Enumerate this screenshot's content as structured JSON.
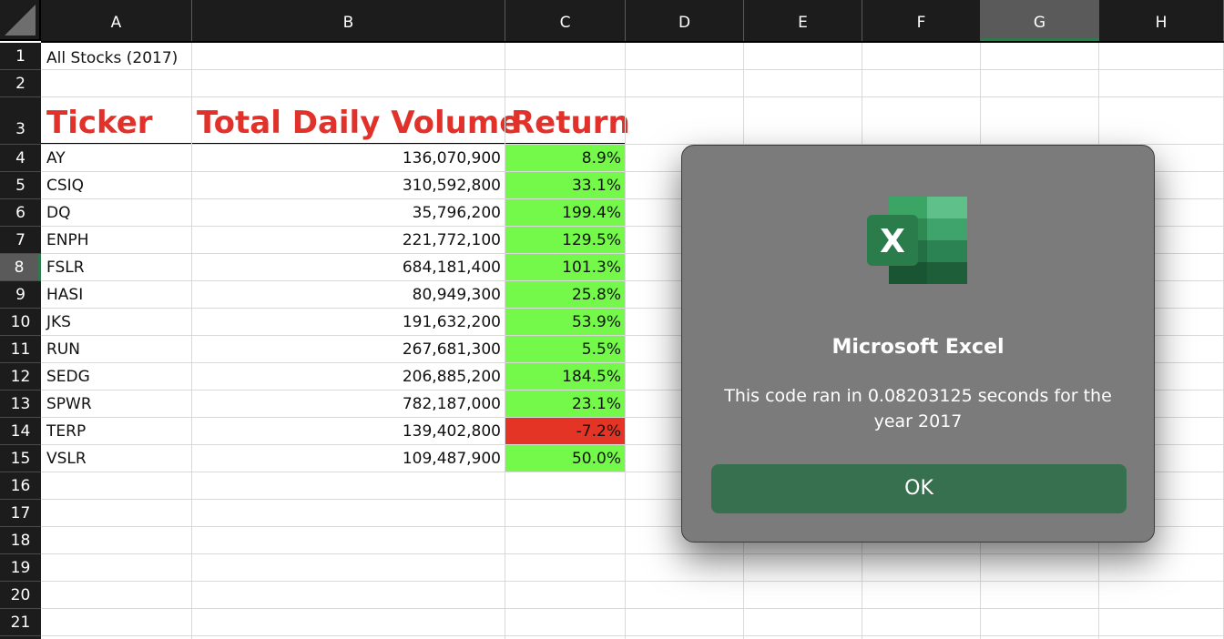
{
  "columns": [
    "A",
    "B",
    "C",
    "D",
    "E",
    "F",
    "G",
    "H"
  ],
  "rows": [
    "1",
    "2",
    "3",
    "4",
    "5",
    "6",
    "7",
    "8",
    "9",
    "10",
    "11",
    "12",
    "13",
    "14",
    "15",
    "16",
    "17",
    "18",
    "19",
    "20",
    "21"
  ],
  "sheet_title": "All Stocks (2017)",
  "headers": {
    "ticker": "Ticker",
    "volume": "Total Daily Volume",
    "return": "Return"
  },
  "stocks": [
    {
      "ticker": "AY",
      "volume": "136,070,900",
      "return": "8.9%",
      "status": "positive"
    },
    {
      "ticker": "CSIQ",
      "volume": "310,592,800",
      "return": "33.1%",
      "status": "positive"
    },
    {
      "ticker": "DQ",
      "volume": "35,796,200",
      "return": "199.4%",
      "status": "positive"
    },
    {
      "ticker": "ENPH",
      "volume": "221,772,100",
      "return": "129.5%",
      "status": "positive"
    },
    {
      "ticker": "FSLR",
      "volume": "684,181,400",
      "return": "101.3%",
      "status": "positive"
    },
    {
      "ticker": "HASI",
      "volume": "80,949,300",
      "return": "25.8%",
      "status": "positive"
    },
    {
      "ticker": "JKS",
      "volume": "191,632,200",
      "return": "53.9%",
      "status": "positive"
    },
    {
      "ticker": "RUN",
      "volume": "267,681,300",
      "return": "5.5%",
      "status": "positive"
    },
    {
      "ticker": "SEDG",
      "volume": "206,885,200",
      "return": "184.5%",
      "status": "positive"
    },
    {
      "ticker": "SPWR",
      "volume": "782,187,000",
      "return": "23.1%",
      "status": "positive"
    },
    {
      "ticker": "TERP",
      "volume": "139,402,800",
      "return": "-7.2%",
      "status": "negative"
    },
    {
      "ticker": "VSLR",
      "volume": "109,487,900",
      "return": "50.0%",
      "status": "positive"
    }
  ],
  "colors": {
    "positive": "#74f84a",
    "negative": "#e43425",
    "header_text": "#e0322a",
    "accent": "#36704e"
  },
  "selected": {
    "column": "G",
    "row": "8"
  },
  "dialog": {
    "icon": "excel-icon",
    "title": "Microsoft Excel",
    "message": "This code ran in 0.08203125 seconds for the year 2017",
    "ok_label": "OK"
  }
}
